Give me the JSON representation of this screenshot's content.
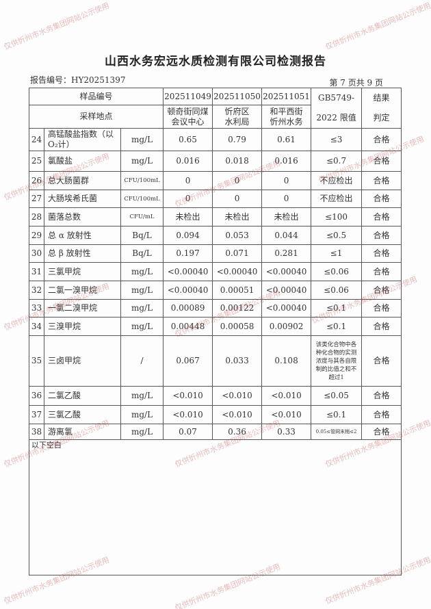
{
  "title": "山西水务宏远水质检测有限公司检测报告",
  "report_no": "报告编号：HY20251397",
  "page_info": "第 7 页共 9 页",
  "header": {
    "sample_no_label": "样品编号",
    "location_label": "采样地点",
    "samples": [
      "202511049",
      "202511050",
      "202511051"
    ],
    "locations": [
      [
        "顿奇街同煤",
        "会议中心"
      ],
      [
        "忻府区",
        "水利局"
      ],
      [
        "和平西街",
        "忻州水务"
      ]
    ],
    "limit_label": [
      "GB5749-",
      "2022 限值"
    ],
    "result_label": [
      "结果",
      "判定"
    ]
  },
  "rows": [
    {
      "no": "24",
      "name": "高锰酸盐指数（以O₂计）",
      "unit": "mg/L",
      "v": [
        "0.65",
        "0.79",
        "0.61"
      ],
      "limit": "≤3",
      "result": "合格"
    },
    {
      "no": "25",
      "name": "氯酸盐",
      "unit": "mg/L",
      "v": [
        "0.016",
        "0.018",
        "0.016"
      ],
      "limit": "≤0.7",
      "result": "合格"
    },
    {
      "no": "26",
      "name": "总大肠菌群",
      "unit": "CFU/100mL",
      "v": [
        "0",
        "0",
        "0"
      ],
      "limit": "不应检出",
      "result": "合格"
    },
    {
      "no": "27",
      "name": "大肠埃希氏菌",
      "unit": "CFU/100mL",
      "v": [
        "0",
        "0",
        "0"
      ],
      "limit": "不应检出",
      "result": "合格"
    },
    {
      "no": "28",
      "name": "菌落总数",
      "unit": "CFU/mL",
      "v": [
        "未检出",
        "未检出",
        "未检出"
      ],
      "limit": "≤100",
      "result": "合格"
    },
    {
      "no": "29",
      "name": "总 α 放射性",
      "unit": "Bq/L",
      "v": [
        "0.094",
        "0.053",
        "0.044"
      ],
      "limit": "≤0.5",
      "result": "合格"
    },
    {
      "no": "30",
      "name": "总 β 放射性",
      "unit": "Bq/L",
      "v": [
        "0.197",
        "0.071",
        "0.281"
      ],
      "limit": "≤1",
      "result": "合格"
    },
    {
      "no": "31",
      "name": "三氯甲烷",
      "unit": "mg/L",
      "v": [
        "<0.00040",
        "<0.00040",
        "<0.00040"
      ],
      "limit": "≤0.06",
      "result": "合格"
    },
    {
      "no": "32",
      "name": "二氯一溴甲烷",
      "unit": "mg/L",
      "v": [
        "<0.00040",
        "0.00051",
        "<0.00040"
      ],
      "limit": "≤0.06",
      "result": "合格"
    },
    {
      "no": "33",
      "name": "一氯二溴甲烷",
      "unit": "mg/L",
      "v": [
        "0.00089",
        "0.00122",
        "<0.00040"
      ],
      "limit": "≤0.1",
      "result": "合格"
    },
    {
      "no": "34",
      "name": "三溴甲烷",
      "unit": "mg/L",
      "v": [
        "0.00448",
        "0.00058",
        "0.00902"
      ],
      "limit": "≤0.1",
      "result": "合格"
    },
    {
      "no": "35",
      "name": "三卤甲烷",
      "unit": "/",
      "v": [
        "0.067",
        "0.033",
        "0.108"
      ],
      "limit": "该类化合物中各种化合物的实测浓度与其各自限制的比值之和不超过1",
      "result": "合格"
    },
    {
      "no": "36",
      "name": "二氯乙酸",
      "unit": "mg/L",
      "v": [
        "<0.010",
        "<0.010",
        "<0.010"
      ],
      "limit": "≤0.05",
      "result": "合格"
    },
    {
      "no": "37",
      "name": "三氯乙酸",
      "unit": "mg/L",
      "v": [
        "<0.010",
        "<0.010",
        "<0.010"
      ],
      "limit": "≤0.1",
      "result": "合格"
    },
    {
      "no": "38",
      "name": "游离氯",
      "unit": "mg/L",
      "v": [
        "0.07",
        "0.36",
        "0.33"
      ],
      "limit": "0.05≤管网末梢≤2",
      "result": "合格"
    }
  ],
  "footer_note": "以下空白",
  "watermark": "仅供忻州市水务集团网站公示使用"
}
